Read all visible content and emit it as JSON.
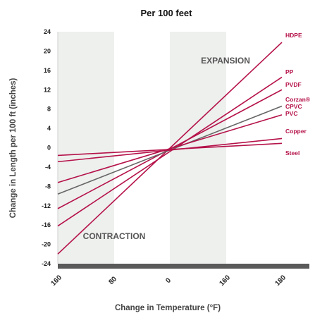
{
  "chart_data": {
    "type": "line",
    "title": "Per 100 feet",
    "xlabel": "Change in Temperature (°F)",
    "ylabel": "Change in Length per 100 ft (inches)",
    "ylim": [
      -24,
      24
    ],
    "yticks": [
      "24",
      "20",
      "16",
      "12",
      "8",
      "4",
      "0",
      "-4",
      "-8",
      "-12",
      "-16",
      "-20",
      "-24"
    ],
    "xticks": [
      "160",
      "80",
      "0",
      "160",
      "180"
    ],
    "x_axis_note": "left half = temperature decrease (contraction), right half = temperature increase (expansion)",
    "annotations": [
      "EXPANSION",
      "CONTRACTION"
    ],
    "grid": false,
    "series": [
      {
        "name": "HDPE",
        "color": "#b5124a",
        "start": -22.0,
        "end": 21.8
      },
      {
        "name": "PP",
        "color": "#b5124a",
        "start": -16.2,
        "end": 14.6
      },
      {
        "name": "PVDF",
        "color": "#b5124a",
        "start": -12.6,
        "end": 12.0
      },
      {
        "name": "Corzan® CPVC",
        "color": "#666666",
        "start": -9.6,
        "end": 8.6
      },
      {
        "name": "PVC",
        "color": "#b5124a",
        "start": -7.2,
        "end": 6.8
      },
      {
        "name": "Copper",
        "color": "#b5124a",
        "start": -2.9,
        "end": 1.9
      },
      {
        "name": "Steel",
        "color": "#b5124a",
        "start": -1.6,
        "end": 0.9
      }
    ],
    "series_labels": {
      "HDPE": "HDPE",
      "PP": "PP",
      "PVDF": "PVDF",
      "Corzan": "Corzan®",
      "CPVC": "CPVC",
      "PVC": "PVC",
      "Copper": "Copper",
      "Steel": "Steel"
    }
  }
}
